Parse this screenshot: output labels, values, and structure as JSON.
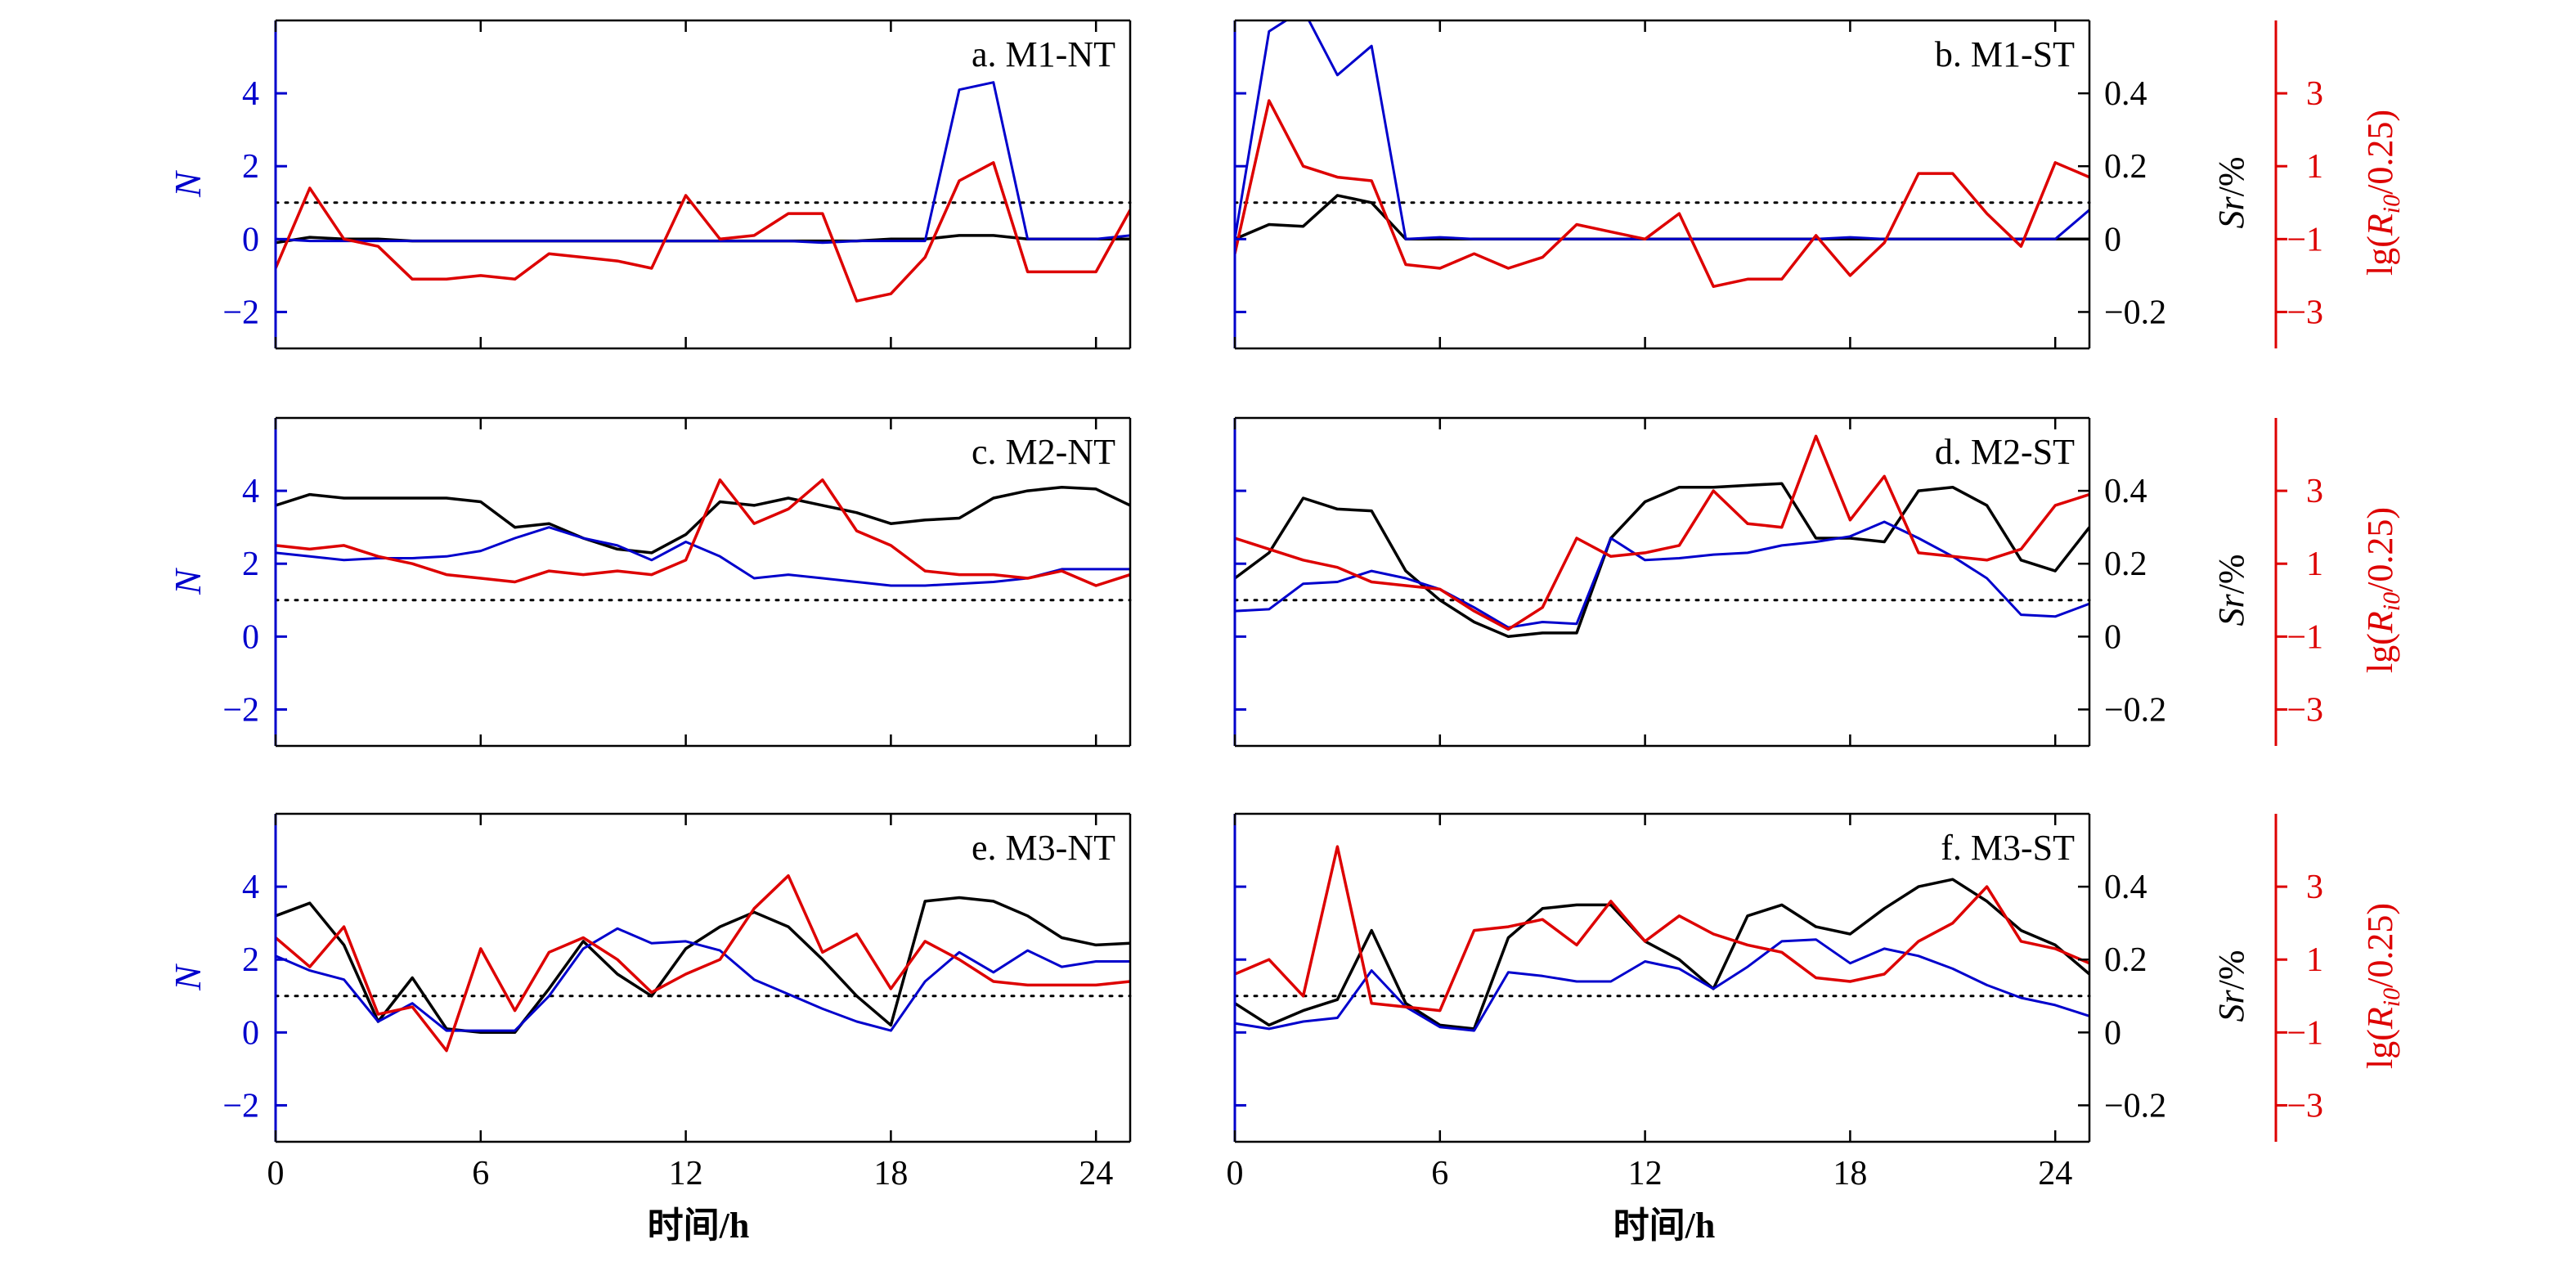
{
  "chart_data": {
    "type": "line",
    "x_label": "时间/h",
    "x_ticks": [
      0,
      6,
      12,
      18,
      24
    ],
    "x_range": [
      0,
      25
    ],
    "left_axis": {
      "label": "N",
      "range": [
        -3,
        6
      ],
      "ticks": [
        -2,
        0,
        2,
        4
      ],
      "color": "#0000cc"
    },
    "mid_axis": {
      "label": "Sr/%",
      "range": [
        -0.3,
        0.6
      ],
      "ticks": [
        -0.2,
        0,
        0.2,
        0.4
      ],
      "tick_labels": [
        "−0.2",
        "0",
        "0.2",
        "0.4"
      ],
      "color": "#000000"
    },
    "right_axis": {
      "label": "lg(R_i0/0.25)",
      "label_prefix": "lg(",
      "label_var": "R",
      "label_sub": "i0",
      "label_suffix": "/0.25)",
      "range": [
        -4,
        5
      ],
      "ticks": [
        -3,
        -1,
        1,
        3
      ],
      "tick_labels": [
        "−3",
        "−1",
        "1",
        "3"
      ],
      "color": "#dd0000"
    },
    "reference_line": {
      "value_N": 1,
      "style": "dotted"
    },
    "series_colors": {
      "N": "#0000cc",
      "Sr": "#000000",
      "Ri": "#dd0000"
    },
    "panels": [
      {
        "title": "a. M1-NT",
        "hours": [
          0,
          1,
          2,
          3,
          4,
          5,
          6,
          7,
          8,
          9,
          10,
          11,
          12,
          13,
          14,
          15,
          16,
          17,
          18,
          19,
          20,
          21,
          22,
          23,
          24,
          25
        ],
        "N": [
          0,
          -0.05,
          -0.05,
          -0.05,
          -0.05,
          -0.05,
          -0.05,
          -0.05,
          -0.05,
          -0.05,
          -0.05,
          -0.05,
          -0.05,
          -0.05,
          -0.05,
          -0.05,
          -0.1,
          -0.05,
          -0.05,
          -0.05,
          4.1,
          4.3,
          0,
          0,
          0,
          0.1
        ],
        "Sr": [
          -0.01,
          0.005,
          0,
          0,
          -0.005,
          -0.005,
          -0.005,
          -0.005,
          -0.005,
          -0.005,
          -0.005,
          -0.005,
          -0.005,
          -0.005,
          -0.005,
          -0.005,
          -0.005,
          -0.005,
          0,
          0,
          0.01,
          0.01,
          0,
          0,
          0,
          0
        ],
        "Ri": [
          -1.8,
          0.4,
          -1,
          -1.2,
          -2.1,
          -2.1,
          -2,
          -2.1,
          -1.4,
          -1.5,
          -1.6,
          -1.8,
          0.2,
          -1,
          -0.9,
          -0.3,
          -0.3,
          -2.7,
          -2.5,
          -1.5,
          0.6,
          1.1,
          -1.9,
          -1.9,
          -1.9,
          -0.2
        ]
      },
      {
        "title": "b. M1-ST",
        "hours": [
          0,
          1,
          2,
          3,
          4,
          5,
          6,
          7,
          8,
          9,
          10,
          11,
          12,
          13,
          14,
          15,
          16,
          17,
          18,
          19,
          20,
          21,
          22,
          23,
          24,
          25
        ],
        "N": [
          0,
          5.7,
          6.3,
          4.5,
          5.3,
          0,
          0.05,
          0,
          0,
          0,
          0,
          0,
          0,
          0,
          0,
          0,
          0,
          0,
          0.05,
          0,
          0,
          0,
          0,
          0,
          0,
          0.8
        ],
        "Sr": [
          0,
          0.04,
          0.035,
          0.12,
          0.1,
          0,
          0,
          0,
          0,
          0,
          0,
          0,
          0,
          0,
          0,
          0,
          0,
          0,
          0,
          0,
          0,
          0,
          0,
          0,
          0,
          0
        ],
        "Ri": [
          -1.4,
          2.8,
          1,
          0.7,
          0.6,
          -1.7,
          -1.8,
          -1.4,
          -1.8,
          -1.5,
          -0.6,
          -0.8,
          -1,
          -0.3,
          -2.3,
          -2.1,
          -2.1,
          -0.9,
          -2,
          -1.1,
          0.8,
          0.8,
          -0.3,
          -1.2,
          1.1,
          0.7
        ]
      },
      {
        "title": "c. M2-NT",
        "hours": [
          0,
          1,
          2,
          3,
          4,
          5,
          6,
          7,
          8,
          9,
          10,
          11,
          12,
          13,
          14,
          15,
          16,
          17,
          18,
          19,
          20,
          21,
          22,
          23,
          24,
          25
        ],
        "N": [
          2.3,
          2.2,
          2.1,
          2.15,
          2.15,
          2.2,
          2.35,
          2.7,
          3,
          2.7,
          2.5,
          2.1,
          2.6,
          2.2,
          1.6,
          1.7,
          1.6,
          1.5,
          1.4,
          1.4,
          1.45,
          1.5,
          1.6,
          1.85,
          1.85,
          1.85
        ],
        "Sr": [
          0.36,
          0.39,
          0.38,
          0.38,
          0.38,
          0.38,
          0.37,
          0.3,
          0.31,
          0.27,
          0.24,
          0.23,
          0.28,
          0.37,
          0.36,
          0.38,
          0.36,
          0.34,
          0.31,
          0.32,
          0.325,
          0.38,
          0.4,
          0.41,
          0.405,
          0.36
        ],
        "Ri": [
          1.5,
          1.4,
          1.5,
          1.2,
          1,
          0.7,
          0.6,
          0.5,
          0.8,
          0.7,
          0.8,
          0.7,
          1.1,
          3.3,
          2.1,
          2.5,
          3.3,
          1.9,
          1.5,
          0.8,
          0.7,
          0.7,
          0.6,
          0.8,
          0.4,
          0.7
        ]
      },
      {
        "title": "d. M2-ST",
        "hours": [
          0,
          1,
          2,
          3,
          4,
          5,
          6,
          7,
          8,
          9,
          10,
          11,
          12,
          13,
          14,
          15,
          16,
          17,
          18,
          19,
          20,
          21,
          22,
          23,
          24,
          25
        ],
        "N": [
          0.7,
          0.75,
          1.45,
          1.5,
          1.8,
          1.6,
          1.3,
          0.8,
          0.25,
          0.4,
          0.35,
          2.7,
          2.1,
          2.15,
          2.25,
          2.3,
          2.5,
          2.6,
          2.75,
          3.15,
          2.7,
          2.2,
          1.6,
          0.6,
          0.55,
          0.9
        ],
        "Sr": [
          0.16,
          0.23,
          0.38,
          0.35,
          0.345,
          0.18,
          0.1,
          0.04,
          0,
          0.01,
          0.01,
          0.27,
          0.37,
          0.41,
          0.41,
          0.415,
          0.42,
          0.27,
          0.27,
          0.26,
          0.4,
          0.41,
          0.36,
          0.21,
          0.18,
          0.3
        ],
        "Ri": [
          1.7,
          1.4,
          1.1,
          0.9,
          0.5,
          0.4,
          0.3,
          -0.3,
          -0.8,
          -0.2,
          1.7,
          1.2,
          1.3,
          1.5,
          3,
          2.1,
          2,
          4.5,
          2.2,
          3.4,
          1.3,
          1.2,
          1.1,
          1.4,
          2.6,
          2.9
        ]
      },
      {
        "title": "e. M3-NT",
        "hours": [
          0,
          1,
          2,
          3,
          4,
          5,
          6,
          7,
          8,
          9,
          10,
          11,
          12,
          13,
          14,
          15,
          16,
          17,
          18,
          19,
          20,
          21,
          22,
          23,
          24,
          25
        ],
        "N": [
          2.1,
          1.7,
          1.45,
          0.3,
          0.8,
          0.05,
          0.05,
          0.05,
          1,
          2.3,
          2.85,
          2.45,
          2.5,
          2.25,
          1.45,
          1.05,
          0.65,
          0.3,
          0.05,
          1.4,
          2.2,
          1.65,
          2.25,
          1.8,
          1.95,
          1.95
        ],
        "Sr": [
          0.32,
          0.355,
          0.24,
          0.03,
          0.15,
          0.01,
          0,
          0,
          0.12,
          0.25,
          0.16,
          0.1,
          0.23,
          0.29,
          0.33,
          0.29,
          0.2,
          0.1,
          0.02,
          0.36,
          0.37,
          0.36,
          0.32,
          0.26,
          0.24,
          0.245
        ],
        "Ri": [
          1.6,
          0.8,
          1.9,
          -0.5,
          -0.3,
          -1.5,
          1.3,
          -0.4,
          1.2,
          1.6,
          1,
          0.1,
          0.6,
          1,
          2.4,
          3.3,
          1.2,
          1.7,
          0.2,
          1.5,
          1,
          0.4,
          0.3,
          0.3,
          0.3,
          0.4
        ]
      },
      {
        "title": "f. M3-ST",
        "hours": [
          0,
          1,
          2,
          3,
          4,
          5,
          6,
          7,
          8,
          9,
          10,
          11,
          12,
          13,
          14,
          15,
          16,
          17,
          18,
          19,
          20,
          21,
          22,
          23,
          24,
          25
        ],
        "N": [
          0.25,
          0.1,
          0.3,
          0.4,
          1.7,
          0.7,
          0.15,
          0.05,
          1.65,
          1.55,
          1.4,
          1.4,
          1.95,
          1.75,
          1.2,
          1.8,
          2.5,
          2.55,
          1.9,
          2.3,
          2.1,
          1.75,
          1.3,
          0.95,
          0.75,
          0.45
        ],
        "Sr": [
          0.08,
          0.02,
          0.06,
          0.09,
          0.28,
          0.08,
          0.02,
          0.01,
          0.26,
          0.34,
          0.35,
          0.35,
          0.25,
          0.2,
          0.12,
          0.32,
          0.35,
          0.29,
          0.27,
          0.34,
          0.4,
          0.42,
          0.36,
          0.28,
          0.24,
          0.16
        ],
        "Ri": [
          0.6,
          1,
          0,
          4.1,
          -0.2,
          -0.3,
          -0.4,
          1.8,
          1.9,
          2.1,
          1.4,
          2.6,
          1.5,
          2.2,
          1.7,
          1.4,
          1.2,
          0.5,
          0.4,
          0.6,
          1.5,
          2,
          3,
          1.5,
          1.3,
          0.9
        ]
      }
    ]
  }
}
